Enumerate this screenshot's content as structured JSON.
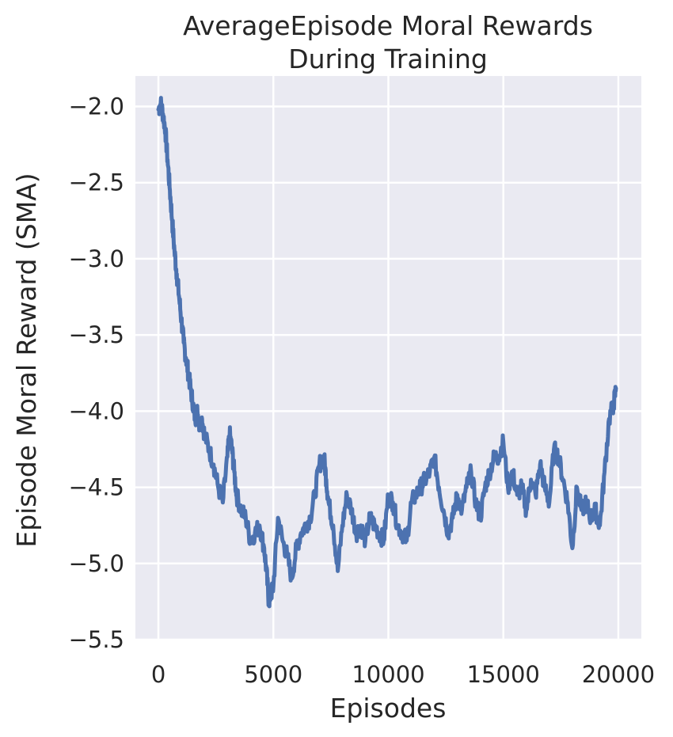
{
  "chart_data": {
    "type": "line",
    "title_line1": "AverageEpisode Moral Rewards",
    "title_line2": "During Training",
    "xlabel": "Episodes",
    "ylabel": "Episode Moral Reward (SMA)",
    "xlim": [
      -1000,
      21000
    ],
    "ylim": [
      -5.5,
      -1.8
    ],
    "xticks": [
      0,
      5000,
      10000,
      15000,
      20000
    ],
    "xtick_labels": [
      "0",
      "5000",
      "10000",
      "15000",
      "20000"
    ],
    "yticks": [
      -2.0,
      -2.5,
      -3.0,
      -3.5,
      -4.0,
      -4.5,
      -5.0,
      -5.5
    ],
    "ytick_labels": [
      "−2.0",
      "−2.5",
      "−3.0",
      "−3.5",
      "−4.0",
      "−4.5",
      "−5.0",
      "−5.5"
    ],
    "grid": true,
    "colors": {
      "background": "#eaeaf2",
      "grid": "#ffffff",
      "series": "#4c72b0"
    },
    "series": [
      {
        "x": [
          0,
          100,
          200,
          300,
          400,
          500,
          600,
          700,
          800,
          900,
          1000,
          1100,
          1200,
          1300,
          1400,
          1500,
          1600,
          1700,
          1800,
          1900,
          2000,
          2200,
          2400,
          2600,
          2800,
          3000,
          3100,
          3200,
          3300,
          3400,
          3600,
          3800,
          4000,
          4200,
          4400,
          4600,
          4700,
          4800,
          4900,
          5000,
          5200,
          5400,
          5600,
          5800,
          6000,
          6200,
          6400,
          6600,
          6800,
          7000,
          7200,
          7300,
          7400,
          7600,
          7800,
          8000,
          8200,
          8400,
          8600,
          8800,
          9000,
          9200,
          9400,
          9600,
          9800,
          10000,
          10200,
          10400,
          10600,
          10800,
          11000,
          11200,
          11400,
          11600,
          11800,
          12000,
          12200,
          12400,
          12600,
          12800,
          13000,
          13200,
          13400,
          13600,
          13800,
          14000,
          14200,
          14400,
          14600,
          14800,
          15000,
          15200,
          15400,
          15600,
          15800,
          16000,
          16200,
          16400,
          16600,
          16800,
          17000,
          17200,
          17400,
          17600,
          17800,
          18000,
          18200,
          18400,
          18600,
          18800,
          19000,
          19200,
          19400,
          19600,
          19800,
          19900
        ],
        "y": [
          -2.02,
          -1.98,
          -2.05,
          -2.15,
          -2.35,
          -2.55,
          -2.75,
          -2.95,
          -3.1,
          -3.25,
          -3.4,
          -3.55,
          -3.65,
          -3.75,
          -3.85,
          -3.95,
          -4.05,
          -4.0,
          -4.1,
          -4.05,
          -4.15,
          -4.25,
          -4.35,
          -4.5,
          -4.6,
          -4.3,
          -4.15,
          -4.25,
          -4.4,
          -4.55,
          -4.65,
          -4.7,
          -4.85,
          -4.8,
          -4.75,
          -4.9,
          -5.05,
          -5.25,
          -5.2,
          -5.15,
          -4.7,
          -4.85,
          -4.95,
          -5.1,
          -4.9,
          -4.8,
          -4.75,
          -4.7,
          -4.55,
          -4.35,
          -4.3,
          -4.45,
          -4.6,
          -4.75,
          -5.05,
          -4.75,
          -4.55,
          -4.65,
          -4.8,
          -4.75,
          -4.85,
          -4.7,
          -4.75,
          -4.8,
          -4.85,
          -4.55,
          -4.6,
          -4.75,
          -4.8,
          -4.85,
          -4.6,
          -4.55,
          -4.5,
          -4.45,
          -4.4,
          -4.3,
          -4.5,
          -4.65,
          -4.8,
          -4.7,
          -4.55,
          -4.65,
          -4.5,
          -4.4,
          -4.6,
          -4.7,
          -4.5,
          -4.4,
          -4.3,
          -4.3,
          -4.2,
          -4.5,
          -4.4,
          -4.55,
          -4.5,
          -4.65,
          -4.45,
          -4.55,
          -4.35,
          -4.5,
          -4.6,
          -4.25,
          -4.3,
          -4.45,
          -4.6,
          -4.9,
          -4.5,
          -4.65,
          -4.6,
          -4.7,
          -4.65,
          -4.75,
          -4.4,
          -4.05,
          -3.95,
          -3.85
        ]
      }
    ]
  }
}
